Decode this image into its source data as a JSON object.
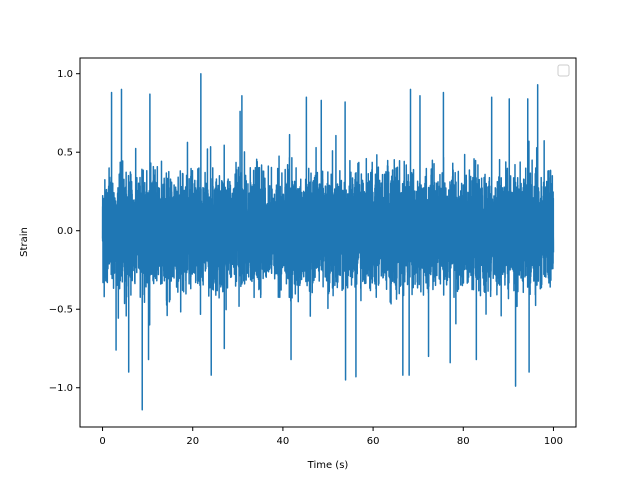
{
  "chart_data": {
    "type": "line",
    "title": "",
    "xlabel": "Time (s)",
    "ylabel": "Strain",
    "xlim": [
      -5,
      105
    ],
    "ylim": [
      -1.25,
      1.1
    ],
    "x_ticks": [
      0,
      20,
      40,
      60,
      80,
      100
    ],
    "x_tick_labels": [
      "0",
      "20",
      "40",
      "60",
      "80",
      "100"
    ],
    "y_ticks": [
      -1.0,
      -0.5,
      0.0,
      0.5,
      1.0
    ],
    "y_tick_labels": [
      "−1.0",
      "−0.5",
      "0.0",
      "0.5",
      "1.0"
    ],
    "grid": false,
    "legend": {
      "placement": "top-right",
      "entries": []
    },
    "series": [
      {
        "color": "#1f77b4",
        "x_range": [
          0,
          100
        ],
        "samples": 10000,
        "y_min": -1.14,
        "y_max": 1.0,
        "y_typical_range": [
          -0.5,
          0.5
        ],
        "description": "dense noise-like strain signal",
        "peaks": [
          {
            "x": 2,
            "y": 0.88
          },
          {
            "x": 4.2,
            "y": 0.9
          },
          {
            "x": 10.5,
            "y": 0.87
          },
          {
            "x": 21.8,
            "y": 1.0
          },
          {
            "x": 30.5,
            "y": 0.76
          },
          {
            "x": 30.9,
            "y": 0.86
          },
          {
            "x": 45.2,
            "y": 0.85
          },
          {
            "x": 48.5,
            "y": 0.83
          },
          {
            "x": 53.8,
            "y": 0.82
          },
          {
            "x": 68.3,
            "y": 0.9
          },
          {
            "x": 70.4,
            "y": 0.86
          },
          {
            "x": 75.6,
            "y": 0.88
          },
          {
            "x": 86.3,
            "y": 0.85
          },
          {
            "x": 90.2,
            "y": 0.84
          },
          {
            "x": 94.3,
            "y": 0.84
          },
          {
            "x": 96.5,
            "y": 0.93
          }
        ],
        "troughs": [
          {
            "x": 3,
            "y": -0.76
          },
          {
            "x": 5.8,
            "y": -0.9
          },
          {
            "x": 8.8,
            "y": -1.14
          },
          {
            "x": 10.2,
            "y": -0.82
          },
          {
            "x": 24.1,
            "y": -0.92
          },
          {
            "x": 27,
            "y": -0.75
          },
          {
            "x": 41.8,
            "y": -0.82
          },
          {
            "x": 53.9,
            "y": -0.95
          },
          {
            "x": 56.2,
            "y": -0.93
          },
          {
            "x": 66.6,
            "y": -0.92
          },
          {
            "x": 68,
            "y": -0.92
          },
          {
            "x": 72.3,
            "y": -0.8
          },
          {
            "x": 77.1,
            "y": -0.84
          },
          {
            "x": 82.9,
            "y": -0.82
          },
          {
            "x": 91.6,
            "y": -0.99
          },
          {
            "x": 94.6,
            "y": -0.9
          }
        ]
      }
    ]
  }
}
